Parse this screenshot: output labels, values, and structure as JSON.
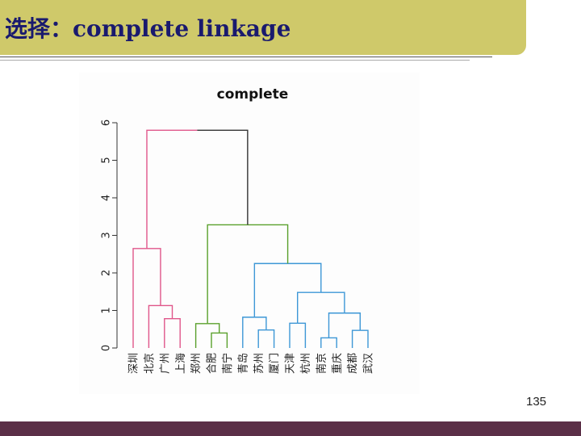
{
  "slide": {
    "title": "选择：complete linkage",
    "page_number": "135",
    "colors": {
      "banner": "#cfc96a",
      "title_text": "#1a1a6e",
      "footer": "#5b2f47"
    }
  },
  "chart_data": {
    "type": "dendrogram",
    "title": "complete",
    "ylim": [
      0,
      6
    ],
    "yticks": [
      0,
      1,
      2,
      3,
      4,
      5,
      6
    ],
    "grid": false,
    "leaves": [
      "深圳",
      "北京",
      "广州",
      "上海",
      "郑州",
      "合肥",
      "南宁",
      "青岛",
      "苏州",
      "厦门",
      "天津",
      "杭州",
      "南京",
      "重庆",
      "成都",
      "武汉"
    ],
    "merges": [
      {
        "a": "L:广州",
        "b": "L:上海",
        "height": 0.78,
        "color": "#e0568a"
      },
      {
        "a": "L:北京",
        "b": "M0",
        "height": 1.13,
        "color": "#e0568a"
      },
      {
        "a": "L:深圳",
        "b": "M1",
        "height": 2.65,
        "color": "#e0568a"
      },
      {
        "a": "L:合肥",
        "b": "L:南宁",
        "height": 0.4,
        "color": "#5aa02c"
      },
      {
        "a": "L:郑州",
        "b": "M3",
        "height": 0.65,
        "color": "#5aa02c"
      },
      {
        "a": "L:苏州",
        "b": "L:厦门",
        "height": 0.48,
        "color": "#3d97d6"
      },
      {
        "a": "L:青岛",
        "b": "M5",
        "height": 0.82,
        "color": "#3d97d6"
      },
      {
        "a": "L:天津",
        "b": "L:杭州",
        "height": 0.66,
        "color": "#3d97d6"
      },
      {
        "a": "L:南京",
        "b": "L:重庆",
        "height": 0.27,
        "color": "#3d97d6"
      },
      {
        "a": "L:成都",
        "b": "L:武汉",
        "height": 0.47,
        "color": "#3d97d6"
      },
      {
        "a": "M8",
        "b": "M9",
        "height": 0.93,
        "color": "#3d97d6"
      },
      {
        "a": "M7",
        "b": "M10",
        "height": 1.48,
        "color": "#3d97d6"
      },
      {
        "a": "M6",
        "b": "M11",
        "height": 2.25,
        "color": "#3d97d6"
      },
      {
        "a": "M4",
        "b": "M12",
        "height": 3.28,
        "color": "#5aa02c"
      },
      {
        "a": "M2",
        "b": "M13",
        "height": 5.8,
        "color": "#e0568a"
      }
    ],
    "root_branch_color_right": "#333333"
  }
}
